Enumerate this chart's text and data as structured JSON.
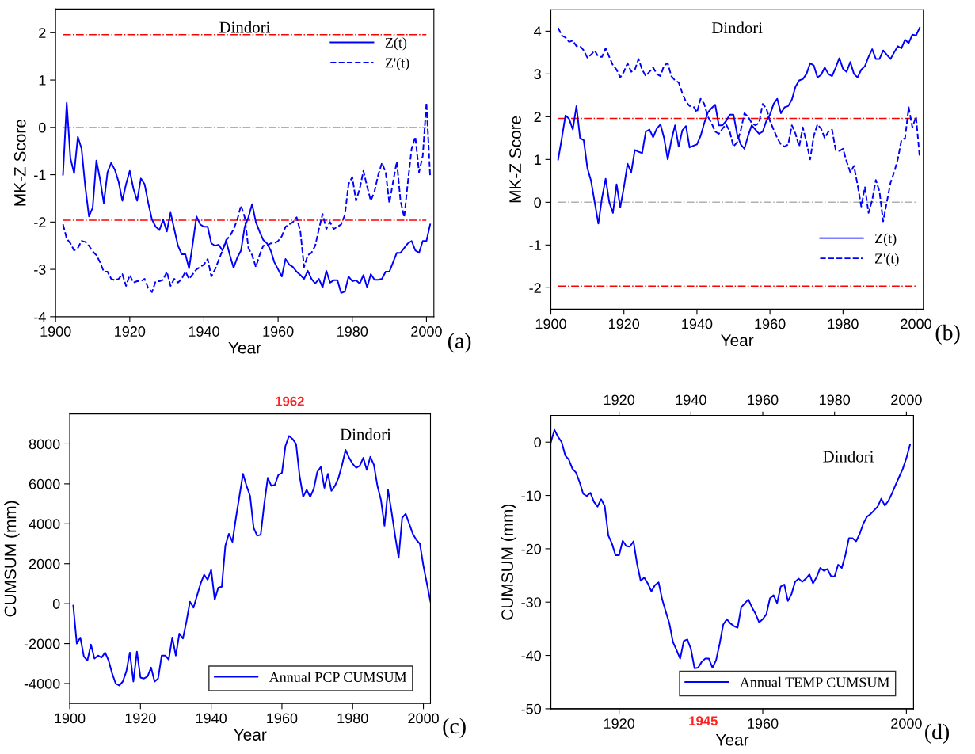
{
  "chart_data": [
    {
      "type": "line",
      "xlabel": "Year",
      "ylabel": "MK-Z Score",
      "xlim": [
        1900,
        2002
      ],
      "ylim": [
        -4,
        2.5
      ],
      "xticks": [
        1900,
        1920,
        1940,
        1960,
        1980,
        2000
      ],
      "yticks": [
        -4,
        -3,
        -2,
        -1,
        0,
        1,
        2
      ],
      "legend": "top right",
      "grid": false,
      "annotations": [
        "Dindori",
        "(a)"
      ],
      "ref_lines": [
        {
          "axis": "y",
          "value": 1.96,
          "color": "#ff0000",
          "line_style": "dashdot"
        },
        {
          "axis": "y",
          "value": -1.96,
          "color": "#ff0000",
          "line_style": "dashdot"
        },
        {
          "axis": "y",
          "value": 0,
          "color": "#b0b0b0",
          "line_style": "dashdot"
        }
      ],
      "series": [
        {
          "name": "Z(t)",
          "color": "#0000ff",
          "line_style": "solid",
          "x": [
            1902,
            1903,
            1904,
            1905,
            1906,
            1907,
            1908,
            1909,
            1910,
            1911,
            1912,
            1913,
            1914,
            1915,
            1916,
            1917,
            1918,
            1919,
            1920,
            1921,
            1922,
            1923,
            1924,
            1925,
            1926,
            1927,
            1928,
            1929,
            1930,
            1931,
            1932,
            1933,
            1934,
            1935,
            1936,
            1937,
            1938,
            1939,
            1940,
            1941,
            1942,
            1943,
            1944,
            1945,
            1946,
            1947,
            1948,
            1949,
            1950,
            1951,
            1952,
            1953,
            1954,
            1955,
            1956,
            1957,
            1958,
            1959,
            1960,
            1961,
            1962,
            1963,
            1964,
            1965,
            1966,
            1967,
            1968,
            1969,
            1970,
            1971,
            1972,
            1973,
            1974,
            1975,
            1976,
            1977,
            1978,
            1979,
            1980,
            1981,
            1982,
            1983,
            1984,
            1985,
            1986,
            1987,
            1988,
            1989,
            1990,
            1991,
            1992,
            1993,
            1994,
            1995,
            1996,
            1997,
            1998,
            1999,
            2000,
            2001
          ],
          "values": [
            -1.0,
            0.52,
            -0.65,
            -0.97,
            -0.2,
            -0.45,
            -1.25,
            -1.88,
            -1.7,
            -0.7,
            -1.1,
            -1.6,
            -0.95,
            -0.75,
            -0.9,
            -1.15,
            -1.55,
            -1.2,
            -0.92,
            -1.3,
            -1.55,
            -1.08,
            -1.2,
            -1.6,
            -1.95,
            -2.1,
            -2.17,
            -1.95,
            -2.2,
            -1.8,
            -2.15,
            -2.5,
            -2.68,
            -2.68,
            -2.98,
            -2.45,
            -1.88,
            -2.05,
            -2.1,
            -2.1,
            -2.45,
            -2.5,
            -2.48,
            -2.6,
            -2.4,
            -2.7,
            -2.97,
            -2.75,
            -2.6,
            -2.1,
            -1.9,
            -1.62,
            -2.0,
            -2.2,
            -2.38,
            -2.45,
            -2.6,
            -2.85,
            -3.0,
            -3.15,
            -2.78,
            -2.9,
            -2.95,
            -3.05,
            -3.12,
            -3.2,
            -3.03,
            -3.2,
            -3.3,
            -3.2,
            -3.38,
            -3.03,
            -3.28,
            -3.23,
            -3.23,
            -3.5,
            -3.47,
            -3.15,
            -3.25,
            -3.23,
            -3.3,
            -3.12,
            -3.38,
            -3.1,
            -3.22,
            -3.22,
            -3.2,
            -3.05,
            -3.05,
            -2.85,
            -2.65,
            -2.65,
            -2.55,
            -2.45,
            -2.4,
            -2.6,
            -2.65,
            -2.4,
            -2.4,
            -2.05
          ]
        },
        {
          "name": "Z'(t)",
          "color": "#0000ff",
          "line_style": "dashed",
          "x": [
            1902,
            1903,
            1904,
            1905,
            1906,
            1907,
            1908,
            1909,
            1910,
            1911,
            1912,
            1913,
            1914,
            1915,
            1916,
            1917,
            1918,
            1919,
            1920,
            1921,
            1922,
            1923,
            1924,
            1925,
            1926,
            1927,
            1928,
            1929,
            1930,
            1931,
            1932,
            1933,
            1934,
            1935,
            1936,
            1937,
            1938,
            1939,
            1940,
            1941,
            1942,
            1943,
            1944,
            1945,
            1946,
            1947,
            1948,
            1949,
            1950,
            1951,
            1952,
            1953,
            1954,
            1955,
            1956,
            1957,
            1958,
            1959,
            1960,
            1961,
            1962,
            1963,
            1964,
            1965,
            1966,
            1967,
            1968,
            1969,
            1970,
            1971,
            1972,
            1973,
            1974,
            1975,
            1976,
            1977,
            1978,
            1979,
            1980,
            1981,
            1982,
            1983,
            1984,
            1985,
            1986,
            1987,
            1988,
            1989,
            1990,
            1991,
            1992,
            1993,
            1994,
            1995,
            1996,
            1997,
            1998,
            1999,
            2000,
            2001
          ],
          "values": [
            -2.05,
            -2.35,
            -2.45,
            -2.6,
            -2.55,
            -2.4,
            -2.42,
            -2.5,
            -2.62,
            -2.7,
            -2.85,
            -3.05,
            -3.05,
            -3.2,
            -3.23,
            -3.2,
            -3.1,
            -3.35,
            -3.12,
            -3.28,
            -3.25,
            -3.25,
            -3.2,
            -3.4,
            -3.48,
            -3.25,
            -3.25,
            -3.22,
            -3.05,
            -3.35,
            -3.2,
            -3.28,
            -3.2,
            -3.05,
            -3.2,
            -3.1,
            -3.0,
            -2.95,
            -2.9,
            -2.78,
            -3.15,
            -3.0,
            -2.8,
            -2.6,
            -2.38,
            -2.3,
            -2.15,
            -1.95,
            -1.65,
            -1.9,
            -2.55,
            -2.7,
            -2.95,
            -2.7,
            -2.5,
            -2.5,
            -2.45,
            -2.45,
            -2.4,
            -2.3,
            -2.1,
            -2.05,
            -2.0,
            -1.9,
            -2.2,
            -2.95,
            -2.7,
            -2.65,
            -2.5,
            -2.15,
            -1.83,
            -2.15,
            -2.0,
            -2.15,
            -2.1,
            -2.05,
            -1.85,
            -1.2,
            -1.05,
            -1.55,
            -1.3,
            -0.92,
            -1.25,
            -1.55,
            -1.35,
            -1.0,
            -0.75,
            -0.95,
            -1.6,
            -1.15,
            -0.72,
            -1.55,
            -1.9,
            -1.15,
            -0.45,
            -0.2,
            -0.95,
            -0.6,
            0.52,
            -1.05
          ]
        }
      ]
    },
    {
      "type": "line",
      "xlabel": "Year",
      "ylabel": "MK-Z Score",
      "xlim": [
        1900,
        2002
      ],
      "ylim": [
        -2.5,
        4.5
      ],
      "xticks": [
        1900,
        1920,
        1940,
        1960,
        1980,
        2000
      ],
      "yticks": [
        -2,
        -1,
        0,
        1,
        2,
        3,
        4
      ],
      "legend": "bottom right",
      "grid": false,
      "annotations": [
        "Dindori",
        "(b)"
      ],
      "ref_lines": [
        {
          "axis": "y",
          "value": 1.96,
          "color": "#ff0000",
          "line_style": "dashdot"
        },
        {
          "axis": "y",
          "value": -1.96,
          "color": "#ff0000",
          "line_style": "dashdot"
        },
        {
          "axis": "y",
          "value": 0,
          "color": "#b0b0b0",
          "line_style": "dashdot"
        }
      ],
      "series": [
        {
          "name": "Z(t)",
          "color": "#0000ff",
          "line_style": "solid",
          "x": [
            1902,
            1903,
            1904,
            1905,
            1906,
            1907,
            1908,
            1909,
            1910,
            1911,
            1912,
            1913,
            1914,
            1915,
            1916,
            1917,
            1918,
            1919,
            1920,
            1921,
            1922,
            1923,
            1924,
            1925,
            1926,
            1927,
            1928,
            1929,
            1930,
            1931,
            1932,
            1933,
            1934,
            1935,
            1936,
            1937,
            1938,
            1939,
            1940,
            1941,
            1942,
            1943,
            1944,
            1945,
            1946,
            1947,
            1948,
            1949,
            1950,
            1951,
            1952,
            1953,
            1954,
            1955,
            1956,
            1957,
            1958,
            1959,
            1960,
            1961,
            1962,
            1963,
            1964,
            1965,
            1966,
            1967,
            1968,
            1969,
            1970,
            1971,
            1972,
            1973,
            1974,
            1975,
            1976,
            1977,
            1978,
            1979,
            1980,
            1981,
            1982,
            1983,
            1984,
            1985,
            1986,
            1987,
            1988,
            1989,
            1990,
            1991,
            1992,
            1993,
            1994,
            1995,
            1996,
            1997,
            1998,
            1999,
            2000,
            2001
          ],
          "values": [
            1.0,
            1.5,
            2.03,
            1.95,
            1.7,
            2.25,
            1.5,
            1.45,
            0.8,
            0.5,
            0.0,
            -0.5,
            0.1,
            0.55,
            0.0,
            -0.25,
            0.42,
            -0.12,
            0.35,
            0.9,
            0.7,
            1.22,
            1.18,
            1.15,
            1.65,
            1.7,
            1.52,
            1.72,
            1.82,
            1.5,
            1.0,
            1.45,
            1.8,
            1.3,
            1.68,
            1.78,
            1.28,
            1.32,
            1.35,
            1.55,
            1.85,
            2.1,
            2.2,
            2.28,
            1.8,
            1.8,
            1.9,
            2.05,
            2.05,
            1.6,
            1.35,
            1.25,
            1.55,
            1.8,
            1.7,
            1.6,
            1.65,
            1.9,
            2.05,
            2.3,
            2.42,
            2.08,
            2.22,
            2.25,
            2.4,
            2.7,
            2.85,
            2.88,
            3.0,
            3.25,
            3.2,
            2.92,
            2.98,
            3.15,
            3.0,
            2.95,
            3.15,
            3.37,
            3.12,
            3.05,
            3.28,
            3.0,
            2.92,
            3.1,
            3.18,
            3.4,
            3.58,
            3.35,
            3.35,
            3.55,
            3.45,
            3.35,
            3.5,
            3.65,
            3.6,
            3.8,
            3.72,
            3.92,
            3.9,
            4.08
          ]
        },
        {
          "name": "Z'(t)",
          "color": "#0000ff",
          "line_style": "dashed",
          "x": [
            1902,
            1903,
            1904,
            1905,
            1906,
            1907,
            1908,
            1909,
            1910,
            1911,
            1912,
            1913,
            1914,
            1915,
            1916,
            1917,
            1918,
            1919,
            1920,
            1921,
            1922,
            1923,
            1924,
            1925,
            1926,
            1927,
            1928,
            1929,
            1930,
            1931,
            1932,
            1933,
            1934,
            1935,
            1936,
            1937,
            1938,
            1939,
            1940,
            1941,
            1942,
            1943,
            1944,
            1945,
            1946,
            1947,
            1948,
            1949,
            1950,
            1951,
            1952,
            1953,
            1954,
            1955,
            1956,
            1957,
            1958,
            1959,
            1960,
            1961,
            1962,
            1963,
            1964,
            1965,
            1966,
            1967,
            1968,
            1969,
            1970,
            1971,
            1972,
            1973,
            1974,
            1975,
            1976,
            1977,
            1978,
            1979,
            1980,
            1981,
            1982,
            1983,
            1984,
            1985,
            1986,
            1987,
            1988,
            1989,
            1990,
            1991,
            1992,
            1993,
            1994,
            1995,
            1996,
            1997,
            1998,
            1999,
            2000,
            2001
          ],
          "values": [
            4.08,
            3.9,
            3.85,
            3.75,
            3.78,
            3.65,
            3.65,
            3.55,
            3.38,
            3.45,
            3.55,
            3.4,
            3.4,
            3.6,
            3.4,
            3.2,
            3.1,
            2.92,
            3.05,
            3.25,
            3.05,
            3.1,
            3.35,
            3.1,
            2.95,
            3.05,
            3.15,
            3.0,
            2.95,
            3.2,
            3.25,
            2.95,
            2.85,
            2.8,
            2.55,
            2.35,
            2.25,
            2.25,
            2.1,
            2.42,
            2.3,
            2.0,
            1.85,
            1.65,
            1.6,
            1.72,
            1.82,
            1.65,
            1.3,
            1.4,
            1.68,
            2.08,
            2.0,
            1.85,
            1.8,
            1.85,
            2.3,
            2.2,
            1.9,
            1.7,
            1.5,
            1.35,
            1.3,
            1.35,
            1.8,
            1.6,
            1.3,
            1.75,
            1.4,
            1.0,
            1.55,
            1.82,
            1.72,
            1.5,
            1.65,
            1.7,
            1.22,
            1.2,
            1.25,
            0.95,
            0.7,
            0.85,
            0.4,
            -0.1,
            0.35,
            -0.25,
            0.05,
            0.52,
            0.25,
            -0.45,
            0.0,
            0.45,
            0.7,
            1.0,
            1.45,
            1.5,
            2.22,
            1.75,
            2.0,
            1.05
          ]
        }
      ]
    },
    {
      "type": "line",
      "xlabel": "Year",
      "ylabel": "CUMSUM (mm)",
      "xlim": [
        1900,
        2002
      ],
      "ylim": [
        -5000,
        9500
      ],
      "xticks": [
        1900,
        1920,
        1940,
        1960,
        1980,
        2000
      ],
      "yticks": [
        -4000,
        -2000,
        0,
        2000,
        4000,
        6000,
        8000
      ],
      "legend": "bottom right",
      "grid": false,
      "annotations": [
        "Dindori",
        "(c)",
        "1962"
      ],
      "series": [
        {
          "name": "Annual PCP CUMSUM",
          "color": "#0000ff",
          "line_style": "solid",
          "x": [
            1901,
            1902,
            1903,
            1904,
            1905,
            1906,
            1907,
            1908,
            1909,
            1910,
            1911,
            1912,
            1913,
            1914,
            1915,
            1916,
            1917,
            1918,
            1919,
            1920,
            1921,
            1922,
            1923,
            1924,
            1925,
            1926,
            1927,
            1928,
            1929,
            1930,
            1931,
            1932,
            1933,
            1934,
            1935,
            1936,
            1937,
            1938,
            1939,
            1940,
            1941,
            1942,
            1943,
            1944,
            1945,
            1946,
            1947,
            1948,
            1949,
            1950,
            1951,
            1952,
            1953,
            1954,
            1955,
            1956,
            1957,
            1958,
            1959,
            1960,
            1961,
            1962,
            1963,
            1964,
            1965,
            1966,
            1967,
            1968,
            1969,
            1970,
            1971,
            1972,
            1973,
            1974,
            1975,
            1976,
            1977,
            1978,
            1979,
            1980,
            1981,
            1982,
            1983,
            1984,
            1985,
            1986,
            1987,
            1988,
            1989,
            1990,
            1991,
            1992,
            1993,
            1994,
            1995,
            1996,
            1997,
            1998,
            1999,
            2000,
            2001,
            2002
          ],
          "values": [
            -100,
            -2000,
            -1700,
            -2650,
            -2850,
            -2050,
            -2750,
            -2600,
            -2700,
            -2450,
            -2850,
            -3500,
            -4000,
            -4100,
            -3900,
            -3400,
            -2450,
            -3900,
            -2400,
            -3700,
            -3750,
            -3650,
            -3200,
            -3900,
            -3750,
            -2600,
            -2600,
            -2800,
            -1700,
            -2600,
            -1500,
            -1750,
            -900,
            100,
            -200,
            400,
            1000,
            1450,
            1200,
            1700,
            200,
            800,
            850,
            2900,
            3500,
            3100,
            4300,
            5400,
            6500,
            5900,
            5400,
            3800,
            3400,
            3450,
            5000,
            6300,
            5900,
            5950,
            6450,
            6550,
            7900,
            8400,
            8250,
            8000,
            6400,
            5350,
            5700,
            5350,
            5750,
            6600,
            6850,
            5800,
            6500,
            5650,
            5900,
            6300,
            6950,
            7700,
            7300,
            7000,
            6800,
            6900,
            7300,
            6700,
            7350,
            6950,
            5900,
            5200,
            3900,
            5700,
            4600,
            3400,
            2300,
            4300,
            4500,
            4000,
            3500,
            3200,
            3000,
            1900,
            1000,
            100
          ]
        }
      ]
    },
    {
      "type": "line",
      "xlabel": "Year",
      "ylabel": "CUMSUM (mm)",
      "xlim": [
        1901,
        2002
      ],
      "ylim": [
        -50,
        5
      ],
      "xticks": [
        1920,
        1960,
        2000
      ],
      "yticks": [
        -50,
        -40,
        -30,
        -20,
        -10,
        0
      ],
      "x2lim": [
        1901,
        2002
      ],
      "x2ticks": [
        1920,
        1940,
        1960,
        1980,
        2000
      ],
      "legend": "bottom right",
      "grid": false,
      "annotations": [
        "Dindori",
        "(d)",
        "1945"
      ],
      "series": [
        {
          "name": "Annual TEMP CUMSUM",
          "color": "#0000ff",
          "line_style": "solid",
          "x": [
            1901,
            1902,
            1903,
            1904,
            1905,
            1906,
            1907,
            1908,
            1909,
            1910,
            1911,
            1912,
            1913,
            1914,
            1915,
            1916,
            1917,
            1918,
            1919,
            1920,
            1921,
            1922,
            1923,
            1924,
            1925,
            1926,
            1927,
            1928,
            1929,
            1930,
            1931,
            1932,
            1933,
            1934,
            1935,
            1936,
            1937,
            1938,
            1939,
            1940,
            1941,
            1942,
            1943,
            1944,
            1945,
            1946,
            1947,
            1948,
            1949,
            1950,
            1951,
            1952,
            1953,
            1954,
            1955,
            1956,
            1957,
            1958,
            1959,
            1960,
            1961,
            1962,
            1963,
            1964,
            1965,
            1966,
            1967,
            1968,
            1969,
            1970,
            1971,
            1972,
            1973,
            1974,
            1975,
            1976,
            1977,
            1978,
            1979,
            1980,
            1981,
            1982,
            1983,
            1984,
            1985,
            1986,
            1987,
            1988,
            1989,
            1990,
            1991,
            1992,
            1993,
            1994,
            1995,
            1996,
            1997,
            1998,
            1999,
            2000,
            2001
          ],
          "values": [
            0,
            2.3,
            1,
            0,
            -2.5,
            -3.3,
            -5,
            -5.7,
            -7.5,
            -9.7,
            -10.1,
            -9.5,
            -11.2,
            -12.1,
            -10.7,
            -12,
            -17.5,
            -19,
            -21.2,
            -21.2,
            -18.5,
            -19.5,
            -19.6,
            -18.6,
            -22.8,
            -26,
            -25.4,
            -26.5,
            -28,
            -26.8,
            -26.3,
            -29.5,
            -31.8,
            -34,
            -37.5,
            -39,
            -40.6,
            -37.3,
            -37,
            -38.8,
            -42.4,
            -42.3,
            -41.2,
            -40.6,
            -40.6,
            -42.3,
            -40.9,
            -37.8,
            -34.2,
            -33.2,
            -34,
            -34.5,
            -34.8,
            -31,
            -30.2,
            -29.5,
            -31,
            -32.2,
            -33.8,
            -33.2,
            -32.3,
            -29.3,
            -28.7,
            -30.2,
            -27.1,
            -26.7,
            -29.8,
            -28.5,
            -26.2,
            -25.6,
            -26.2,
            -25.6,
            -24.8,
            -26.5,
            -25.3,
            -23.6,
            -24.1,
            -23.8,
            -25.1,
            -25.2,
            -23,
            -23.6,
            -21.2,
            -18,
            -18,
            -18.6,
            -17.2,
            -15.3,
            -14,
            -13.5,
            -12.8,
            -12.1,
            -10.6,
            -11.9,
            -11,
            -9.6,
            -8,
            -6.5,
            -5,
            -3,
            -0.5
          ]
        }
      ]
    }
  ]
}
